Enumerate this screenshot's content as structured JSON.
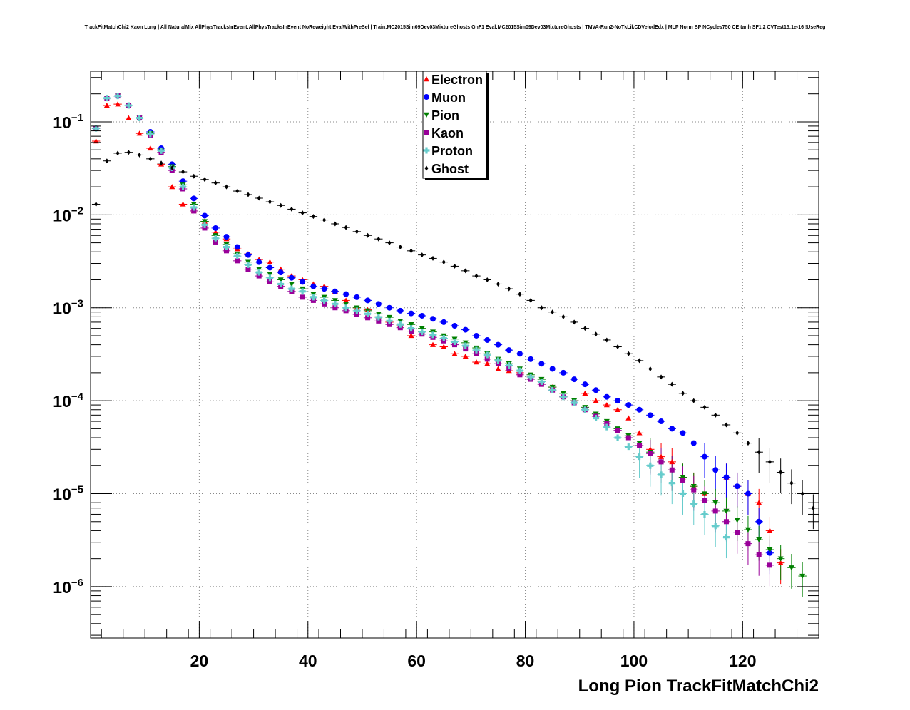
{
  "chart_data": {
    "type": "scatter",
    "title": "TrackFitMatchChi2 Kaon Long | All NaturalMix AllPhysTracksInEvent:AllPhysTracksInEvent NoReweight EvalWithPreSel | Train:MC2015Sim09Dev03MixtureGhosts GhF1 Eval:MC2015Sim09Dev03MixtureGhosts | TMVA-Run2-NoTkLikCDVelodEdx | MLP Norm BP NCycles750 CE tanh SF1.2 CVTest15:1e-16 !UseReg",
    "xlabel": "Long Pion TrackFitMatchChi2",
    "ylabel": "",
    "xlim": [
      0,
      134
    ],
    "ylim": [
      2.8e-07,
      0.35
    ],
    "yscale": "log",
    "grid": true,
    "x_ticks": [
      20,
      40,
      60,
      80,
      100,
      120
    ],
    "y_ticks": [
      {
        "value": 1e-06,
        "base": "10",
        "exp": "−6"
      },
      {
        "value": 1e-05,
        "base": "10",
        "exp": "−5"
      },
      {
        "value": 0.0001,
        "base": "10",
        "exp": "−4"
      },
      {
        "value": 0.001,
        "base": "10",
        "exp": "−3"
      },
      {
        "value": 0.01,
        "base": "10",
        "exp": "−2"
      },
      {
        "value": 0.1,
        "base": "10",
        "exp": "−1"
      }
    ],
    "legend": {
      "position": "top-center"
    },
    "series": [
      {
        "name": "Electron",
        "color": "#ff0000",
        "marker": "triangle-up",
        "x": [
          1,
          3,
          5,
          7,
          9,
          11,
          13,
          15,
          17,
          19,
          21,
          23,
          25,
          27,
          29,
          31,
          33,
          35,
          37,
          39,
          41,
          43,
          45,
          47,
          49,
          51,
          53,
          55,
          57,
          59,
          61,
          63,
          65,
          67,
          69,
          71,
          73,
          75,
          77,
          79,
          81,
          83,
          85,
          87,
          89,
          91,
          93,
          95,
          97,
          99,
          101,
          103,
          105,
          107,
          109,
          111,
          113,
          117,
          119,
          121,
          123,
          125,
          127
        ],
        "y": [
          0.062,
          0.15,
          0.155,
          0.11,
          0.075,
          0.052,
          0.035,
          0.02,
          0.013,
          0.011,
          0.0085,
          0.0065,
          0.0055,
          0.0043,
          0.0038,
          0.0033,
          0.0031,
          0.0026,
          0.0022,
          0.002,
          0.0018,
          0.0017,
          0.0015,
          0.0012,
          0.001,
          0.00095,
          0.0008,
          0.0007,
          0.00065,
          0.0005,
          0.00055,
          0.0004,
          0.00038,
          0.00032,
          0.0003,
          0.00026,
          0.00025,
          0.00022,
          0.00021,
          0.0002,
          0.00018,
          0.00016,
          0.00014,
          0.00011,
          0.0001,
          0.00012,
          0.0001,
          9e-05,
          8e-05,
          6.5e-05,
          4.5e-05,
          3e-05,
          2.5e-05,
          2.2e-05,
          1.5e-05,
          1.2e-05,
          1e-05,
          1.5e-05,
          1.2e-05,
          1e-05,
          8e-06,
          4e-06,
          1.8e-06
        ]
      },
      {
        "name": "Muon",
        "color": "#0000ff",
        "marker": "circle",
        "x": [
          1,
          3,
          5,
          7,
          9,
          11,
          13,
          15,
          17,
          19,
          21,
          23,
          25,
          27,
          29,
          31,
          33,
          35,
          37,
          39,
          41,
          43,
          45,
          47,
          49,
          51,
          53,
          55,
          57,
          59,
          61,
          63,
          65,
          67,
          69,
          71,
          73,
          75,
          77,
          79,
          81,
          83,
          85,
          87,
          89,
          91,
          93,
          95,
          97,
          99,
          101,
          103,
          105,
          107,
          109,
          111,
          113,
          115,
          117,
          119,
          121,
          123,
          125
        ],
        "y": [
          0.085,
          0.18,
          0.19,
          0.15,
          0.11,
          0.078,
          0.052,
          0.035,
          0.023,
          0.015,
          0.0098,
          0.0072,
          0.0058,
          0.0045,
          0.0037,
          0.0031,
          0.0027,
          0.0024,
          0.0021,
          0.0019,
          0.0017,
          0.0016,
          0.0015,
          0.0014,
          0.0013,
          0.0012,
          0.0011,
          0.001,
          0.00093,
          0.00087,
          0.00082,
          0.00076,
          0.0007,
          0.00064,
          0.00058,
          0.0005,
          0.00045,
          0.0004,
          0.00035,
          0.00032,
          0.00028,
          0.00025,
          0.00022,
          0.0002,
          0.00017,
          0.00015,
          0.00013,
          0.00011,
          0.0001,
          9e-05,
          8e-05,
          7e-05,
          6e-05,
          5e-05,
          4.5e-05,
          3.5e-05,
          2.5e-05,
          1.8e-05,
          1.5e-05,
          1.2e-05,
          1e-05,
          5e-06,
          2.3e-06
        ]
      },
      {
        "name": "Pion",
        "color": "#008000",
        "marker": "triangle-down",
        "x": [
          1,
          3,
          5,
          7,
          9,
          11,
          13,
          15,
          17,
          19,
          21,
          23,
          25,
          27,
          29,
          31,
          33,
          35,
          37,
          39,
          41,
          43,
          45,
          47,
          49,
          51,
          53,
          55,
          57,
          59,
          61,
          63,
          65,
          67,
          69,
          71,
          73,
          75,
          77,
          79,
          81,
          83,
          85,
          87,
          89,
          91,
          93,
          95,
          97,
          99,
          101,
          103,
          105,
          107,
          109,
          111,
          113,
          115,
          117,
          119,
          121,
          123,
          125,
          127,
          129,
          131
        ],
        "y": [
          0.085,
          0.18,
          0.19,
          0.15,
          0.11,
          0.075,
          0.05,
          0.033,
          0.021,
          0.013,
          0.0085,
          0.006,
          0.0048,
          0.0038,
          0.0031,
          0.0026,
          0.0023,
          0.002,
          0.0018,
          0.0016,
          0.0014,
          0.0013,
          0.0012,
          0.0011,
          0.001,
          0.00093,
          0.00086,
          0.00079,
          0.00072,
          0.00066,
          0.0006,
          0.00055,
          0.0005,
          0.00046,
          0.00042,
          0.00037,
          0.00032,
          0.00028,
          0.00025,
          0.00022,
          0.00019,
          0.00017,
          0.00014,
          0.00012,
          0.0001,
          8.5e-05,
          7.2e-05,
          6e-05,
          5e-05,
          4.2e-05,
          3.5e-05,
          2.8e-05,
          2.2e-05,
          1.8e-05,
          1.5e-05,
          1.2e-05,
          1e-05,
          8e-06,
          6.5e-06,
          5.2e-06,
          4.1e-06,
          3.2e-06,
          2.5e-06,
          2e-06,
          1.6e-06,
          1.3e-06
        ]
      },
      {
        "name": "Kaon",
        "color": "#990099",
        "marker": "square",
        "x": [
          1,
          3,
          5,
          7,
          9,
          11,
          13,
          15,
          17,
          19,
          21,
          23,
          25,
          27,
          29,
          31,
          33,
          35,
          37,
          39,
          41,
          43,
          45,
          47,
          49,
          51,
          53,
          55,
          57,
          59,
          61,
          63,
          65,
          67,
          69,
          71,
          73,
          75,
          77,
          79,
          81,
          83,
          85,
          87,
          89,
          91,
          93,
          95,
          97,
          99,
          101,
          103,
          105,
          107,
          109,
          111,
          113,
          115,
          117,
          119,
          121,
          123,
          125
        ],
        "y": [
          0.085,
          0.18,
          0.19,
          0.15,
          0.11,
          0.072,
          0.047,
          0.03,
          0.019,
          0.011,
          0.0072,
          0.0051,
          0.0041,
          0.0032,
          0.0026,
          0.0022,
          0.0019,
          0.0017,
          0.0015,
          0.0013,
          0.0012,
          0.0011,
          0.001,
          0.00093,
          0.00085,
          0.00078,
          0.00072,
          0.00066,
          0.00061,
          0.00056,
          0.00052,
          0.00048,
          0.00044,
          0.0004,
          0.00036,
          0.00032,
          0.00028,
          0.00025,
          0.00022,
          0.00019,
          0.00017,
          0.00015,
          0.00013,
          0.00011,
          9.5e-05,
          8e-05,
          6.8e-05,
          5.7e-05,
          4.8e-05,
          4e-05,
          3.3e-05,
          2.7e-05,
          2.2e-05,
          1.8e-05,
          1.4e-05,
          1.1e-05,
          8.5e-06,
          6.5e-06,
          5e-06,
          3.8e-06,
          2.9e-06,
          2.2e-06,
          1.7e-06
        ]
      },
      {
        "name": "Proton",
        "color": "#66cccc",
        "marker": "cross",
        "x": [
          1,
          3,
          5,
          7,
          9,
          11,
          13,
          15,
          17,
          19,
          21,
          23,
          25,
          27,
          29,
          31,
          33,
          35,
          37,
          39,
          41,
          43,
          45,
          47,
          49,
          51,
          53,
          55,
          57,
          59,
          61,
          63,
          65,
          67,
          69,
          71,
          73,
          75,
          77,
          79,
          81,
          83,
          85,
          87,
          89,
          91,
          93,
          95,
          97,
          99,
          101,
          103,
          105,
          107,
          109,
          111,
          113,
          115,
          117
        ],
        "y": [
          0.085,
          0.18,
          0.19,
          0.15,
          0.11,
          0.074,
          0.049,
          0.032,
          0.02,
          0.012,
          0.0078,
          0.0056,
          0.0045,
          0.0036,
          0.0029,
          0.0024,
          0.0021,
          0.0018,
          0.0016,
          0.0015,
          0.0013,
          0.0012,
          0.0011,
          0.001,
          0.00093,
          0.00086,
          0.00079,
          0.00072,
          0.00066,
          0.0006,
          0.00055,
          0.00051,
          0.00047,
          0.00043,
          0.00039,
          0.00035,
          0.00031,
          0.00027,
          0.00024,
          0.00021,
          0.00018,
          0.00016,
          0.00013,
          0.00011,
          9.5e-05,
          8e-05,
          6.5e-05,
          5.2e-05,
          4e-05,
          3.2e-05,
          2.5e-05,
          2e-05,
          1.6e-05,
          1.3e-05,
          1e-05,
          7.8e-06,
          6e-06,
          4.5e-06,
          3.4e-06
        ]
      },
      {
        "name": "Ghost",
        "color": "#000000",
        "marker": "diamond",
        "x": [
          1,
          3,
          5,
          7,
          9,
          11,
          13,
          15,
          17,
          19,
          21,
          23,
          25,
          27,
          29,
          31,
          33,
          35,
          37,
          39,
          41,
          43,
          45,
          47,
          49,
          51,
          53,
          55,
          57,
          59,
          61,
          63,
          65,
          67,
          69,
          71,
          73,
          75,
          77,
          79,
          81,
          83,
          85,
          87,
          89,
          91,
          93,
          95,
          97,
          99,
          101,
          103,
          105,
          107,
          109,
          111,
          113,
          115,
          117,
          119,
          121,
          123,
          125,
          127,
          129,
          131,
          133
        ],
        "y": [
          0.013,
          0.038,
          0.046,
          0.047,
          0.044,
          0.04,
          0.036,
          0.032,
          0.029,
          0.026,
          0.024,
          0.022,
          0.02,
          0.018,
          0.0165,
          0.0151,
          0.0138,
          0.0126,
          0.0115,
          0.0105,
          0.0096,
          0.0088,
          0.008,
          0.0073,
          0.0066,
          0.006,
          0.0055,
          0.005,
          0.0045,
          0.0041,
          0.0037,
          0.0034,
          0.0031,
          0.0028,
          0.0025,
          0.0022,
          0.002,
          0.0018,
          0.0016,
          0.0014,
          0.0012,
          0.001,
          0.0009,
          0.0008,
          0.0007,
          0.0006,
          0.00052,
          0.00045,
          0.00038,
          0.00032,
          0.00027,
          0.00022,
          0.00018,
          0.00015,
          0.00012,
          0.0001,
          8.5e-05,
          7e-05,
          5.5e-05,
          4.5e-05,
          3.5e-05,
          2.8e-05,
          2.2e-05,
          1.7e-05,
          1.3e-05,
          1e-05,
          7e-06
        ]
      }
    ]
  }
}
